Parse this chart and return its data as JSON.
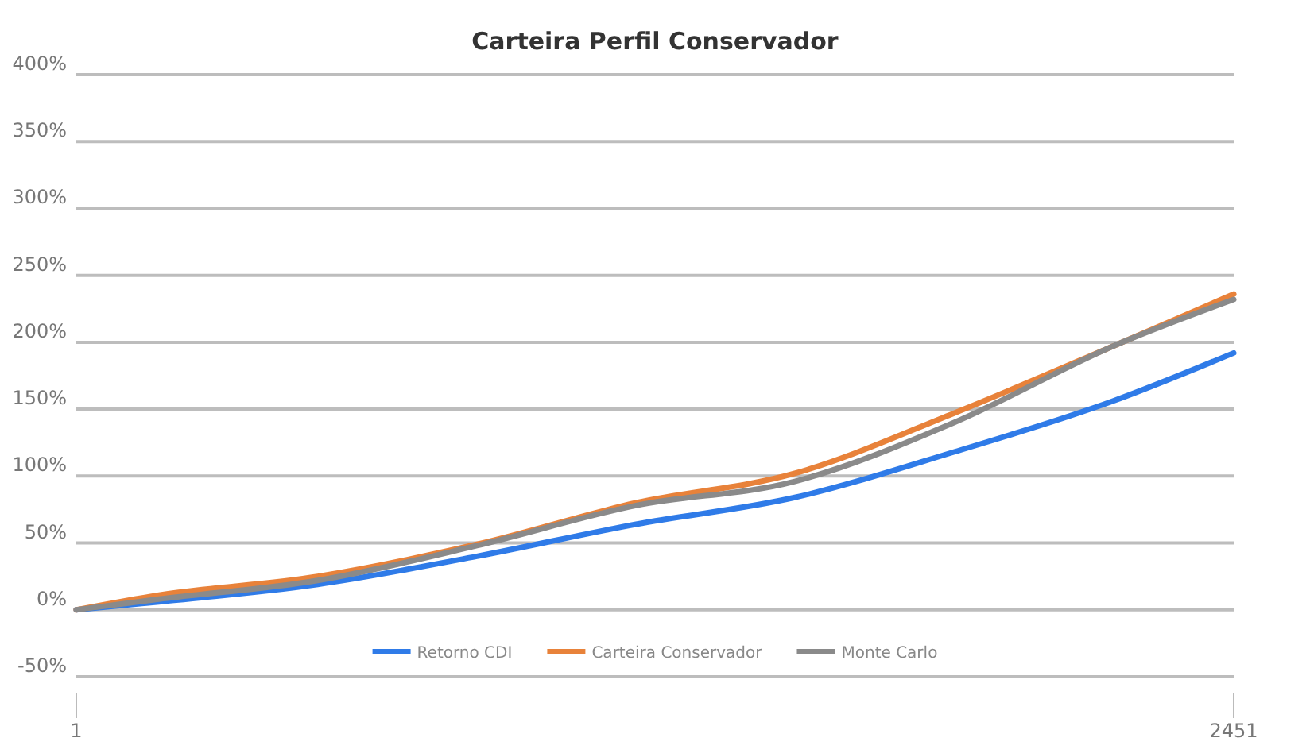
{
  "chart_data": {
    "type": "line",
    "title": "Carteira Perfil Conservador",
    "x": [
      1,
      176,
      512,
      849,
      1186,
      1522,
      1859,
      2195,
      2451
    ],
    "series": [
      {
        "name": "Retorno CDI",
        "color": "#2f7be8",
        "values": [
          0,
          6,
          19,
          40,
          64,
          84,
          118,
          156,
          192
        ]
      },
      {
        "name": "Carteira Conservador",
        "color": "#e8823a",
        "values": [
          0,
          11,
          25,
          49,
          80,
          102,
          147,
          197,
          236
        ]
      },
      {
        "name": "Monte Carlo",
        "color": "#8a8a8a",
        "values": [
          0,
          8,
          22,
          48,
          78,
          96,
          140,
          197,
          232
        ]
      }
    ],
    "xlim": [
      1,
      2451
    ],
    "xticks": [
      1,
      2451
    ],
    "ylim": [
      -50,
      400
    ],
    "yticks": [
      {
        "value": -50,
        "label": "-50%"
      },
      {
        "value": 0,
        "label": "0%"
      },
      {
        "value": 50,
        "label": "50%"
      },
      {
        "value": 100,
        "label": "100%"
      },
      {
        "value": 150,
        "label": "150%"
      },
      {
        "value": 200,
        "label": "200%"
      },
      {
        "value": 250,
        "label": "250%"
      },
      {
        "value": 300,
        "label": "300%"
      },
      {
        "value": 350,
        "label": "350%"
      },
      {
        "value": 400,
        "label": "400%"
      }
    ],
    "grid": "y",
    "legend": "bottom",
    "marker": "none",
    "line_style": "solid"
  }
}
